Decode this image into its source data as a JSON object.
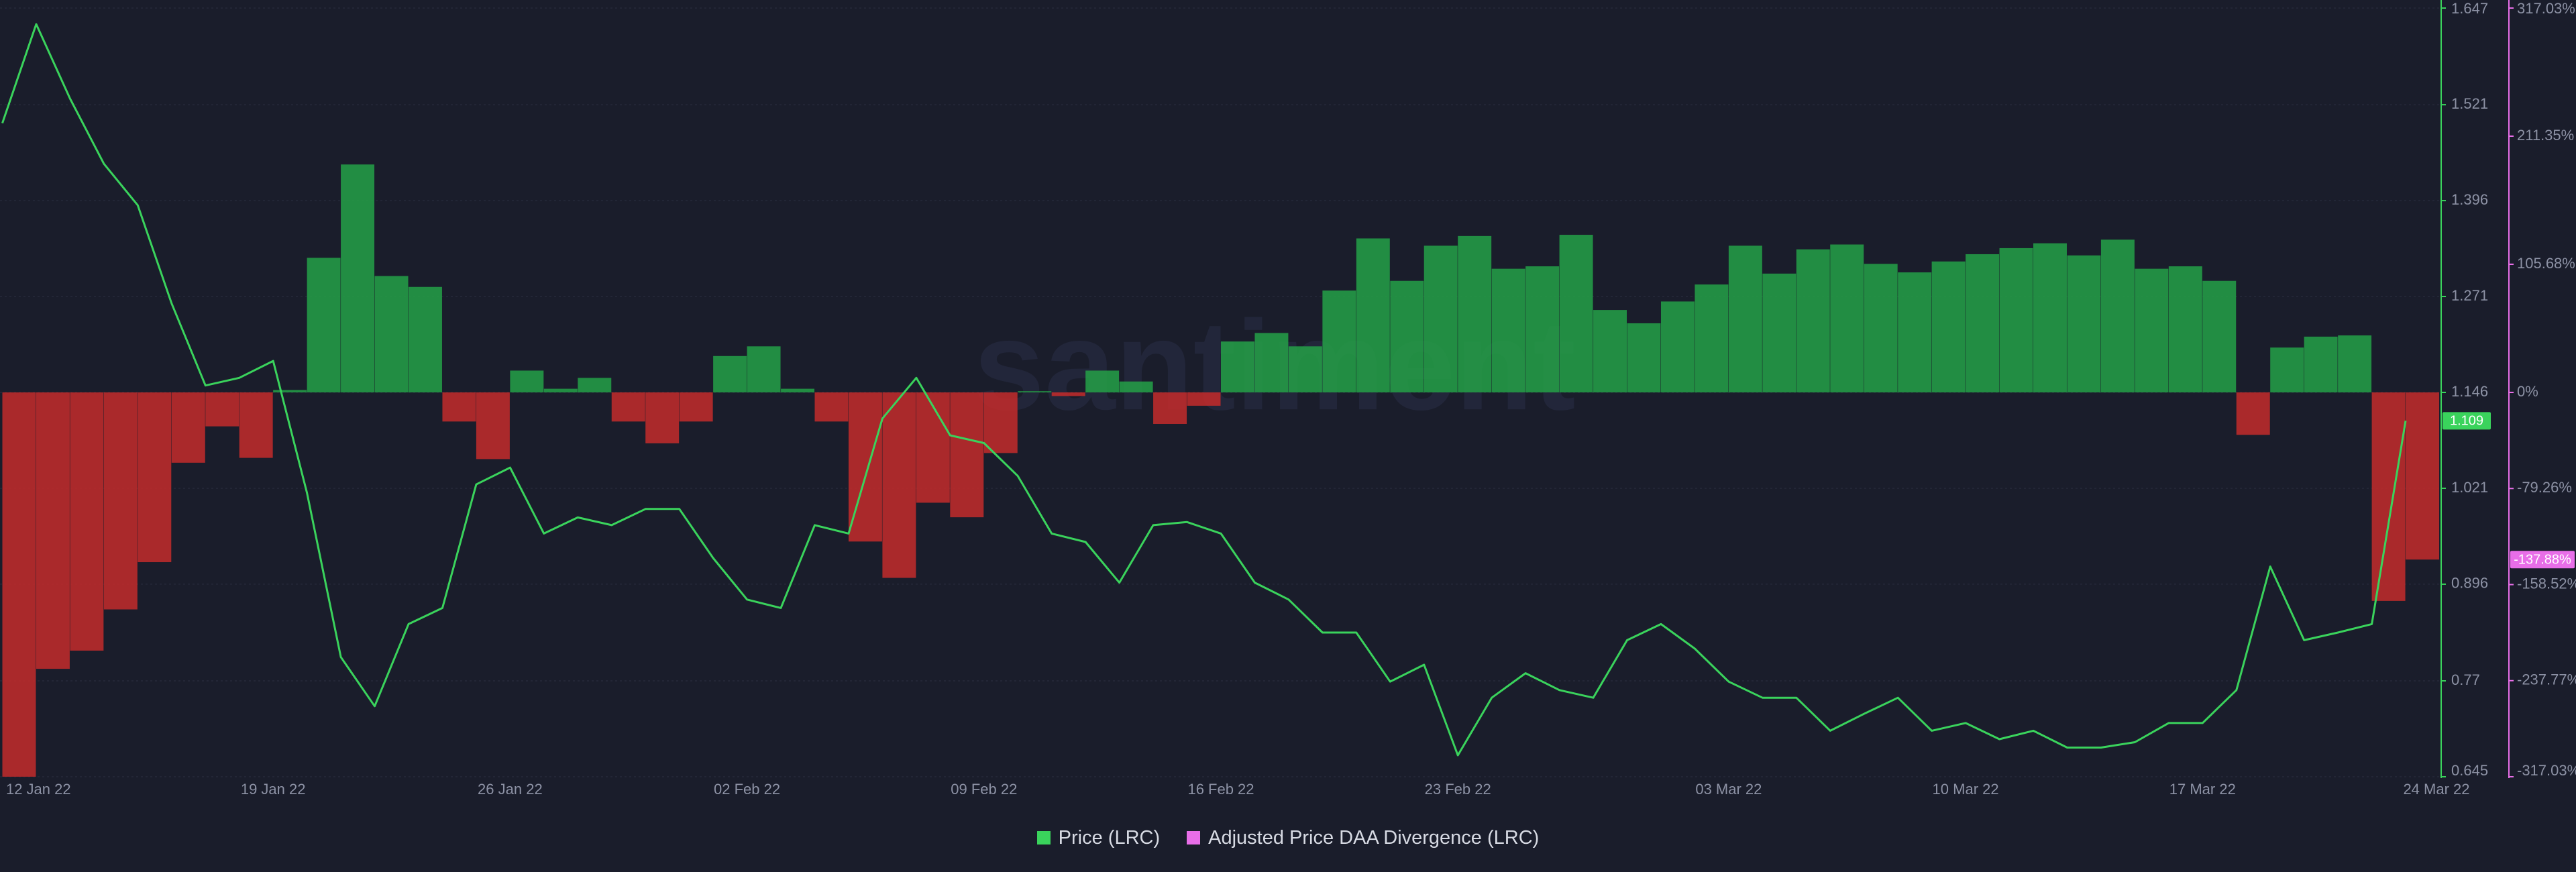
{
  "chart_data": {
    "type": "combo",
    "watermark": "santiment",
    "x": [
      "11 Jan 22",
      "12 Jan 22",
      "13 Jan 22",
      "14 Jan 22",
      "15 Jan 22",
      "16 Jan 22",
      "17 Jan 22",
      "18 Jan 22",
      "19 Jan 22",
      "20 Jan 22",
      "21 Jan 22",
      "22 Jan 22",
      "23 Jan 22",
      "24 Jan 22",
      "25 Jan 22",
      "26 Jan 22",
      "27 Jan 22",
      "28 Jan 22",
      "29 Jan 22",
      "30 Jan 22",
      "31 Jan 22",
      "01 Feb 22",
      "02 Feb 22",
      "03 Feb 22",
      "04 Feb 22",
      "05 Feb 22",
      "06 Feb 22",
      "07 Feb 22",
      "08 Feb 22",
      "09 Feb 22",
      "10 Feb 22",
      "11 Feb 22",
      "12 Feb 22",
      "13 Feb 22",
      "14 Feb 22",
      "15 Feb 22",
      "16 Feb 22",
      "17 Feb 22",
      "18 Feb 22",
      "19 Feb 22",
      "20 Feb 22",
      "21 Feb 22",
      "22 Feb 22",
      "23 Feb 22",
      "24 Feb 22",
      "25 Feb 22",
      "26 Feb 22",
      "27 Feb 22",
      "28 Feb 22",
      "01 Mar 22",
      "02 Mar 22",
      "03 Mar 22",
      "04 Mar 22",
      "05 Mar 22",
      "06 Mar 22",
      "07 Mar 22",
      "08 Mar 22",
      "09 Mar 22",
      "10 Mar 22",
      "11 Mar 22",
      "12 Mar 22",
      "13 Mar 22",
      "14 Mar 22",
      "15 Mar 22",
      "16 Mar 22",
      "17 Mar 22",
      "18 Mar 22",
      "19 Mar 22",
      "20 Mar 22",
      "21 Mar 22",
      "22 Mar 22",
      "23 Mar 22",
      "24 Mar 22"
    ],
    "xticks": [
      "12 Jan 22",
      "19 Jan 22",
      "26 Jan 22",
      "02 Feb 22",
      "09 Feb 22",
      "16 Feb 22",
      "23 Feb 22",
      "03 Mar 22",
      "10 Mar 22",
      "17 Mar 22",
      "24 Mar 22"
    ],
    "ylim": [
      0.645,
      1.647
    ],
    "yticks": [
      0.645,
      0.77,
      0.896,
      1.021,
      1.146,
      1.271,
      1.396,
      1.521,
      1.647
    ],
    "y2lim": [
      -317.03,
      317.03
    ],
    "y2ticks": [
      {
        "value": -317.03,
        "label": "-317.03%"
      },
      {
        "value": -237.77,
        "label": "-237.77%"
      },
      {
        "value": -158.52,
        "label": "-158.52%"
      },
      {
        "value": -79.26,
        "label": "-79.26%"
      },
      {
        "value": 0,
        "label": "0%"
      },
      {
        "value": 105.68,
        "label": "105.68%"
      },
      {
        "value": 211.35,
        "label": "211.35%"
      },
      {
        "value": 317.03,
        "label": "317.03%"
      }
    ],
    "grid": true,
    "legend": "bottom",
    "series": [
      {
        "name": "Price (LRC)",
        "type": "line",
        "axis": "y",
        "color": "#3ad35c",
        "current_value": 1.109,
        "values": [
          1.497,
          1.626,
          1.529,
          1.444,
          1.39,
          1.262,
          1.155,
          1.165,
          1.187,
          1.015,
          0.801,
          0.737,
          0.844,
          0.865,
          1.026,
          1.048,
          0.962,
          0.983,
          0.973,
          0.994,
          0.994,
          0.93,
          0.876,
          0.865,
          0.973,
          0.962,
          1.112,
          1.165,
          1.09,
          1.08,
          1.037,
          0.962,
          0.951,
          0.898,
          0.973,
          0.977,
          0.962,
          0.898,
          0.876,
          0.833,
          0.833,
          0.769,
          0.791,
          0.673,
          0.748,
          0.78,
          0.758,
          0.748,
          0.823,
          0.844,
          0.812,
          0.769,
          0.748,
          0.748,
          0.705,
          0.727,
          0.748,
          0.705,
          0.715,
          0.694,
          0.705,
          0.683,
          0.683,
          0.69,
          0.715,
          0.715,
          0.758,
          0.919,
          0.823,
          0.833,
          0.844,
          1.109,
          null
        ]
      },
      {
        "name": "Adjusted Price DAA Divergence (LRC)",
        "type": "bar",
        "axis": "y2",
        "color": "#e86ee8",
        "positive_color": "#24a148",
        "negative_color": "#c42b2b",
        "current_value": {
          "value": -137.88,
          "label": "-137.88%"
        },
        "values": [
          -317,
          -228,
          -213,
          -179,
          -140,
          -58,
          -28,
          -54,
          2,
          111,
          188,
          96,
          87,
          -24,
          -55,
          18,
          3,
          12,
          -24,
          -42,
          -24,
          30,
          38,
          3,
          -24,
          -123,
          -153,
          -91,
          -103,
          -50,
          1,
          -3,
          18,
          9,
          -26,
          -11,
          42,
          49,
          38,
          84,
          127,
          92,
          121,
          129,
          102,
          104,
          130,
          68,
          57,
          75,
          89,
          121,
          98,
          118,
          122,
          106,
          99,
          108,
          114,
          119,
          123,
          113,
          126,
          102,
          104,
          92,
          -35,
          37,
          46,
          47,
          -172,
          -137.88,
          null
        ]
      }
    ]
  }
}
